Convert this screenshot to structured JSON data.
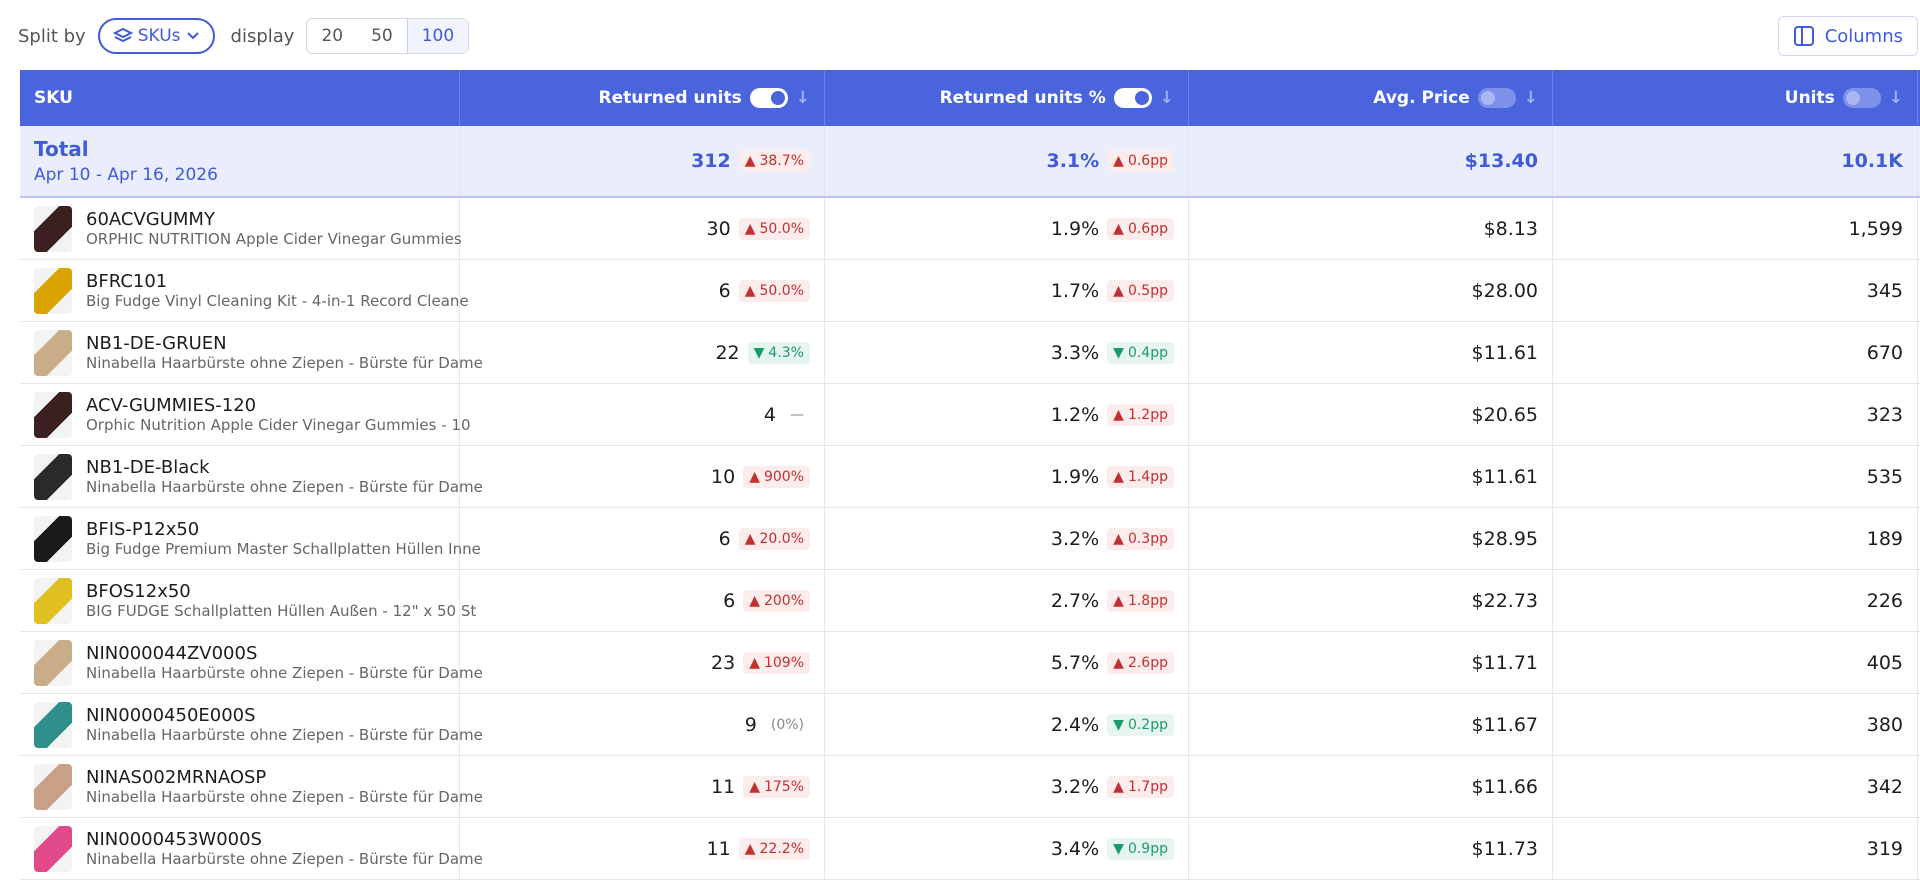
{
  "toolbar": {
    "split_label": "Split by",
    "split_value": "SKUs",
    "display_label": "display",
    "display_options": [
      "20",
      "50",
      "100"
    ],
    "display_selected": 2,
    "columns_button": "Columns"
  },
  "table": {
    "headers": [
      "SKU",
      "Returned units",
      "Returned units %",
      "Avg. Price",
      "Units"
    ],
    "header_toggles": [
      null,
      true,
      true,
      false,
      false
    ],
    "total": {
      "label": "Total",
      "date": "Apr 10 - Apr 16, 2026",
      "returned": "312",
      "returned_change": {
        "dir": "up",
        "text": "38.7%"
      },
      "returned_pct": "3.1%",
      "pct_change": {
        "dir": "up",
        "text": "0.6pp"
      },
      "avg_price": "$13.40",
      "units": "10.1K"
    },
    "rows": [
      {
        "thumb": "#3a2020",
        "sku": "60ACVGUMMY",
        "name": "ORPHIC NUTRITION Apple Cider Vinegar Gummies",
        "returned": "30",
        "returned_change": {
          "dir": "up",
          "text": "50.0%"
        },
        "returned_pct": "1.9%",
        "pct_change": {
          "dir": "up",
          "text": "0.6pp"
        },
        "avg_price": "$8.13",
        "units": "1,599"
      },
      {
        "thumb": "#d9a300",
        "sku": "BFRC101",
        "name": "Big Fudge Vinyl Cleaning Kit - 4-in-1 Record Cleane",
        "returned": "6",
        "returned_change": {
          "dir": "up",
          "text": "50.0%"
        },
        "returned_pct": "1.7%",
        "pct_change": {
          "dir": "up",
          "text": "0.5pp"
        },
        "avg_price": "$28.00",
        "units": "345"
      },
      {
        "thumb": "#c9ad88",
        "sku": "NB1-DE-GRUEN",
        "name": "Ninabella Haarbürste ohne Ziepen - Bürste für Dame",
        "returned": "22",
        "returned_change": {
          "dir": "down",
          "text": "4.3%"
        },
        "returned_pct": "3.3%",
        "pct_change": {
          "dir": "down",
          "text": "0.4pp"
        },
        "avg_price": "$11.61",
        "units": "670"
      },
      {
        "thumb": "#3a2020",
        "sku": "ACV-GUMMIES-120",
        "name": "Orphic Nutrition Apple Cider Vinegar Gummies - 10",
        "returned": "4",
        "returned_change": {
          "dir": "none",
          "text": "—"
        },
        "returned_pct": "1.2%",
        "pct_change": {
          "dir": "up",
          "text": "1.2pp"
        },
        "avg_price": "$20.65",
        "units": "323"
      },
      {
        "thumb": "#2a2a2a",
        "sku": "NB1-DE-Black",
        "name": "Ninabella Haarbürste ohne Ziepen - Bürste für Dame",
        "returned": "10",
        "returned_change": {
          "dir": "up",
          "text": "900%"
        },
        "returned_pct": "1.9%",
        "pct_change": {
          "dir": "up",
          "text": "1.4pp"
        },
        "avg_price": "$11.61",
        "units": "535"
      },
      {
        "thumb": "#1a1a1a",
        "sku": "BFIS-P12x50",
        "name": "Big Fudge Premium Master Schallplatten Hüllen Inne",
        "returned": "6",
        "returned_change": {
          "dir": "up",
          "text": "20.0%"
        },
        "returned_pct": "3.2%",
        "pct_change": {
          "dir": "up",
          "text": "0.3pp"
        },
        "avg_price": "$28.95",
        "units": "189"
      },
      {
        "thumb": "#e0c020",
        "sku": "BFOS12x50",
        "name": "BIG FUDGE Schallplatten Hüllen Außen - 12\" x 50 St",
        "returned": "6",
        "returned_change": {
          "dir": "up",
          "text": "200%"
        },
        "returned_pct": "2.7%",
        "pct_change": {
          "dir": "up",
          "text": "1.8pp"
        },
        "avg_price": "$22.73",
        "units": "226"
      },
      {
        "thumb": "#c9ad88",
        "sku": "NIN000044ZV000S",
        "name": "Ninabella Haarbürste ohne Ziepen - Bürste für Dame",
        "returned": "23",
        "returned_change": {
          "dir": "up",
          "text": "109%"
        },
        "returned_pct": "5.7%",
        "pct_change": {
          "dir": "up",
          "text": "2.6pp"
        },
        "avg_price": "$11.71",
        "units": "405"
      },
      {
        "thumb": "#2f8f8a",
        "sku": "NIN0000450E000S",
        "name": "Ninabella Haarbürste ohne Ziepen - Bürste für Dame",
        "returned": "9",
        "returned_change": {
          "dir": "none",
          "text": "(0%)"
        },
        "returned_pct": "2.4%",
        "pct_change": {
          "dir": "down",
          "text": "0.2pp"
        },
        "avg_price": "$11.67",
        "units": "380"
      },
      {
        "thumb": "#c9a088",
        "sku": "NINAS002MRNAOSP",
        "name": "Ninabella Haarbürste ohne Ziepen - Bürste für Dame",
        "returned": "11",
        "returned_change": {
          "dir": "up",
          "text": "175%"
        },
        "returned_pct": "3.2%",
        "pct_change": {
          "dir": "up",
          "text": "1.7pp"
        },
        "avg_price": "$11.66",
        "units": "342"
      },
      {
        "thumb": "#e04a8a",
        "sku": "NIN0000453W000S",
        "name": "Ninabella Haarbürste ohne Ziepen - Bürste für Dame",
        "returned": "11",
        "returned_change": {
          "dir": "up",
          "text": "22.2%"
        },
        "returned_pct": "3.4%",
        "pct_change": {
          "dir": "down",
          "text": "0.9pp"
        },
        "avg_price": "$11.73",
        "units": "319"
      }
    ]
  }
}
